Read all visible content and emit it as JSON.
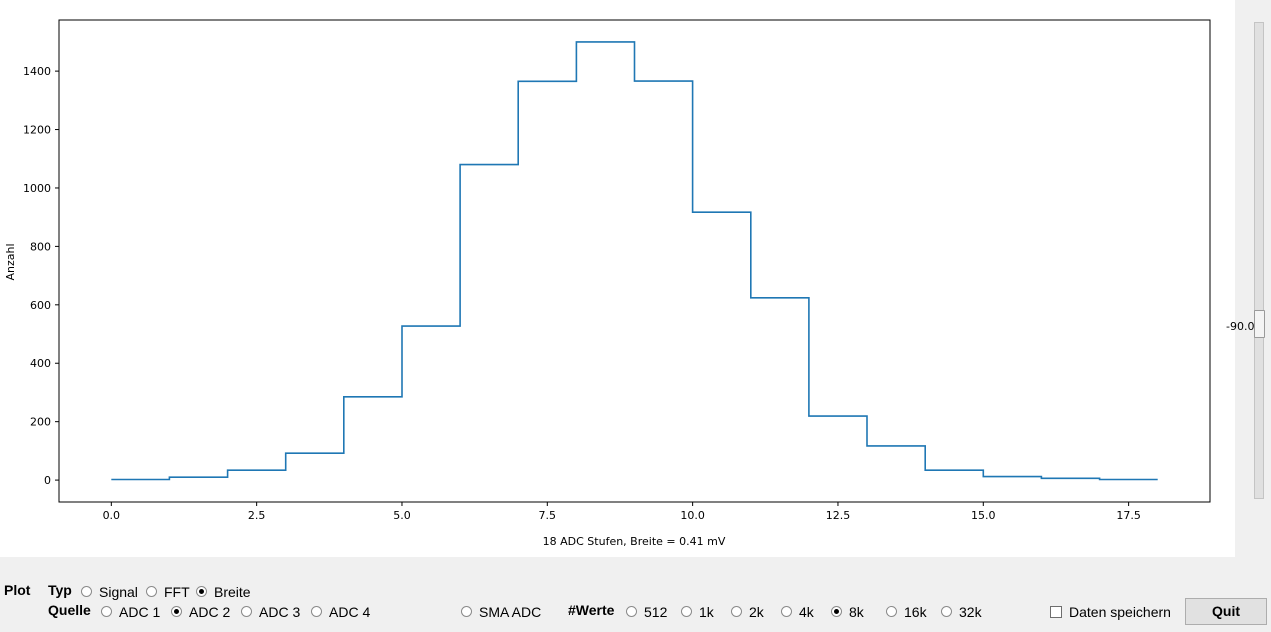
{
  "chart_data": {
    "type": "line",
    "style": "step",
    "x": [
      0,
      1,
      2,
      3,
      4,
      5,
      6,
      7,
      8,
      9,
      10,
      11,
      12,
      13,
      14,
      15,
      16,
      17,
      18
    ],
    "y": [
      2,
      10,
      34,
      92,
      285,
      527,
      1080,
      1365,
      1500,
      1366,
      917,
      624,
      219,
      117,
      34,
      12,
      6,
      2,
      2
    ],
    "xlabel": "18 ADC Stufen, Breite = 0.41 mV",
    "ylabel": "Anzahl",
    "xlim": [
      -0.9,
      18.9
    ],
    "ylim": [
      -75,
      1575
    ],
    "xticks": [
      "0.0",
      "2.5",
      "5.0",
      "7.5",
      "10.0",
      "12.5",
      "15.0",
      "17.5"
    ],
    "xtick_values": [
      0,
      2.5,
      5,
      7.5,
      10,
      12.5,
      15,
      17.5
    ],
    "yticks": [
      "0",
      "200",
      "400",
      "600",
      "800",
      "1000",
      "1200",
      "1400"
    ],
    "ytick_values": [
      0,
      200,
      400,
      600,
      800,
      1000,
      1200,
      1400
    ],
    "line_color": "#1f77b4",
    "grid": false
  },
  "slider": {
    "value": "-90.0",
    "level": -90.0
  },
  "controls": {
    "plot_label": "Plot",
    "typ_label": "Typ",
    "typ_options": [
      {
        "label": "Signal",
        "checked": false
      },
      {
        "label": "FFT",
        "checked": false
      },
      {
        "label": "Breite",
        "checked": true
      }
    ],
    "quelle_label": "Quelle",
    "quelle_options": [
      {
        "label": "ADC 1",
        "checked": false
      },
      {
        "label": "ADC 2",
        "checked": true
      },
      {
        "label": "ADC 3",
        "checked": false
      },
      {
        "label": "ADC 4",
        "checked": false
      }
    ],
    "sma_option": {
      "label": "SMA ADC",
      "checked": false
    },
    "werte_label": "#Werte",
    "werte_options": [
      {
        "label": "512",
        "checked": false
      },
      {
        "label": "1k",
        "checked": false
      },
      {
        "label": "2k",
        "checked": false
      },
      {
        "label": "4k",
        "checked": false
      },
      {
        "label": "8k",
        "checked": true
      },
      {
        "label": "16k",
        "checked": false
      },
      {
        "label": "32k",
        "checked": false
      }
    ],
    "save_data": {
      "label": "Daten speichern",
      "checked": false
    },
    "quit_label": "Quit"
  }
}
